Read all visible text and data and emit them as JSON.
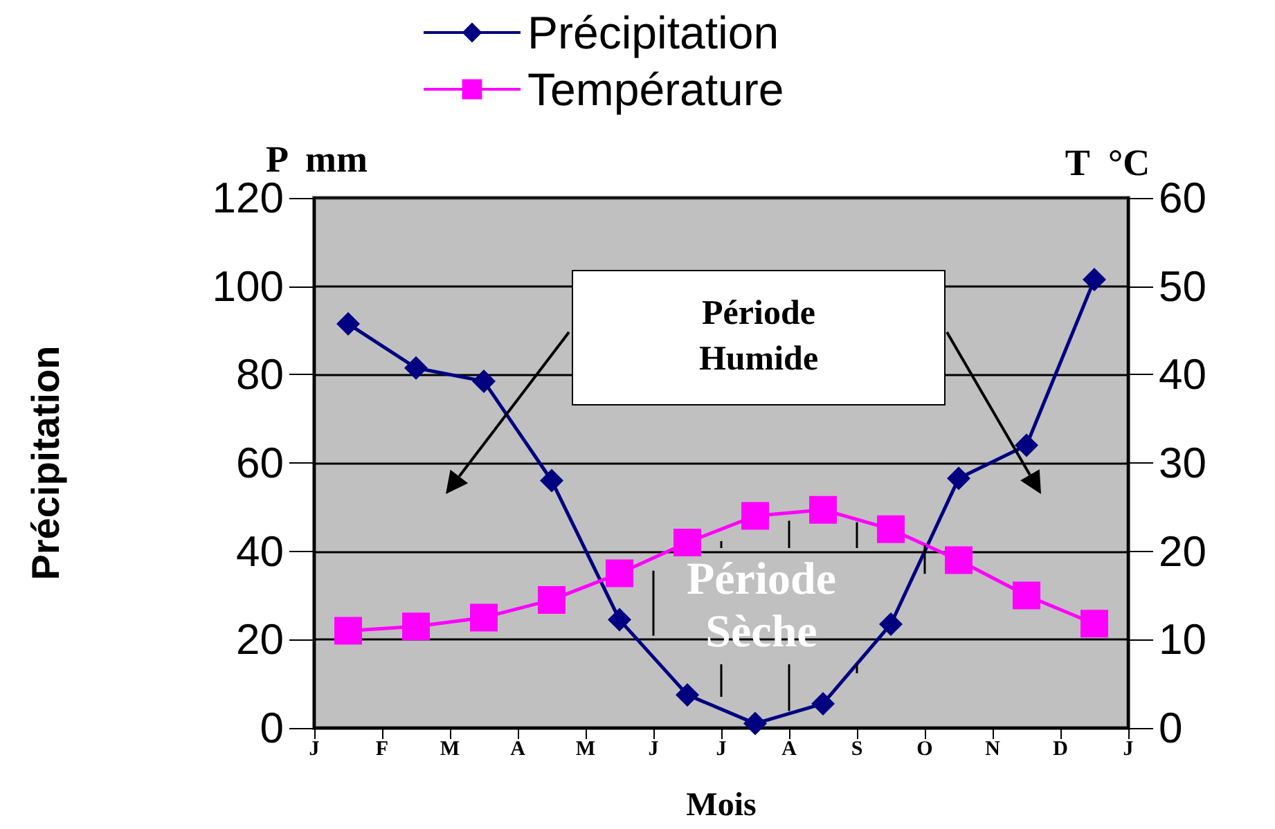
{
  "chart_data": {
    "type": "line",
    "xlabel": "Mois",
    "ylabel": "Précipitation",
    "y2label": "T  °C",
    "annotations": [
      "P  mm",
      "Période Humide",
      "Période Sèche"
    ],
    "categories": [
      "J",
      null,
      "F",
      null,
      "M",
      null,
      "A",
      null,
      "M",
      null,
      "J",
      null,
      "J",
      null,
      "A",
      null,
      "S",
      null,
      "O",
      null,
      "N",
      null,
      "D",
      null,
      "J"
    ],
    "series": [
      {
        "name": "Précipitation",
        "color": "#000080",
        "marker": "diamond",
        "values": [
          null,
          91.5,
          null,
          81.5,
          null,
          78.5,
          null,
          56,
          null,
          24.5,
          null,
          7.5,
          null,
          1,
          null,
          5.5,
          null,
          23.5,
          null,
          56.5,
          null,
          64,
          null,
          101.5,
          null
        ]
      },
      {
        "name": "Température",
        "color": "#ff00ff",
        "marker": "square",
        "axis": "y2",
        "values": [
          null,
          11,
          null,
          11.5,
          null,
          12.5,
          null,
          14.5,
          null,
          17.5,
          null,
          21,
          null,
          24,
          null,
          24.7,
          null,
          22.5,
          null,
          19,
          null,
          15,
          null,
          11.8,
          null
        ]
      }
    ],
    "ylim": [
      0,
      120
    ],
    "yticks": [
      0,
      20,
      40,
      60,
      80,
      100,
      120
    ],
    "y2lim": [
      0,
      60
    ],
    "y2ticks": [
      0,
      10,
      20,
      30,
      40,
      50,
      60
    ],
    "grid": "y",
    "legend": "top",
    "line_style": "solid"
  }
}
